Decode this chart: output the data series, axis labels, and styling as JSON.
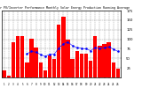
{
  "title": "Solar PV/Inverter Performance Monthly Solar Energy Production Running Average",
  "bar_values": [
    18,
    4,
    92,
    108,
    108,
    38,
    102,
    78,
    38,
    18,
    58,
    48,
    138,
    158,
    98,
    48,
    68,
    63,
    63,
    43,
    108,
    83,
    88,
    93,
    38,
    23
  ],
  "avg_values": [
    null,
    null,
    null,
    null,
    null,
    62,
    68,
    66,
    60,
    55,
    61,
    61,
    77,
    88,
    93,
    83,
    78,
    76,
    75,
    70,
    78,
    76,
    78,
    80,
    74,
    68
  ],
  "bar_color": "#ff0000",
  "avg_color": "#0000ff",
  "background_color": "#ffffff",
  "grid_color": "#888888",
  "ylim": [
    0,
    175
  ],
  "ytick_values": [
    25,
    50,
    75,
    100,
    125,
    150,
    175
  ],
  "ytick_labels": [
    "25",
    "50",
    "75",
    "100",
    "125",
    "150",
    "175"
  ],
  "n_bars": 26
}
